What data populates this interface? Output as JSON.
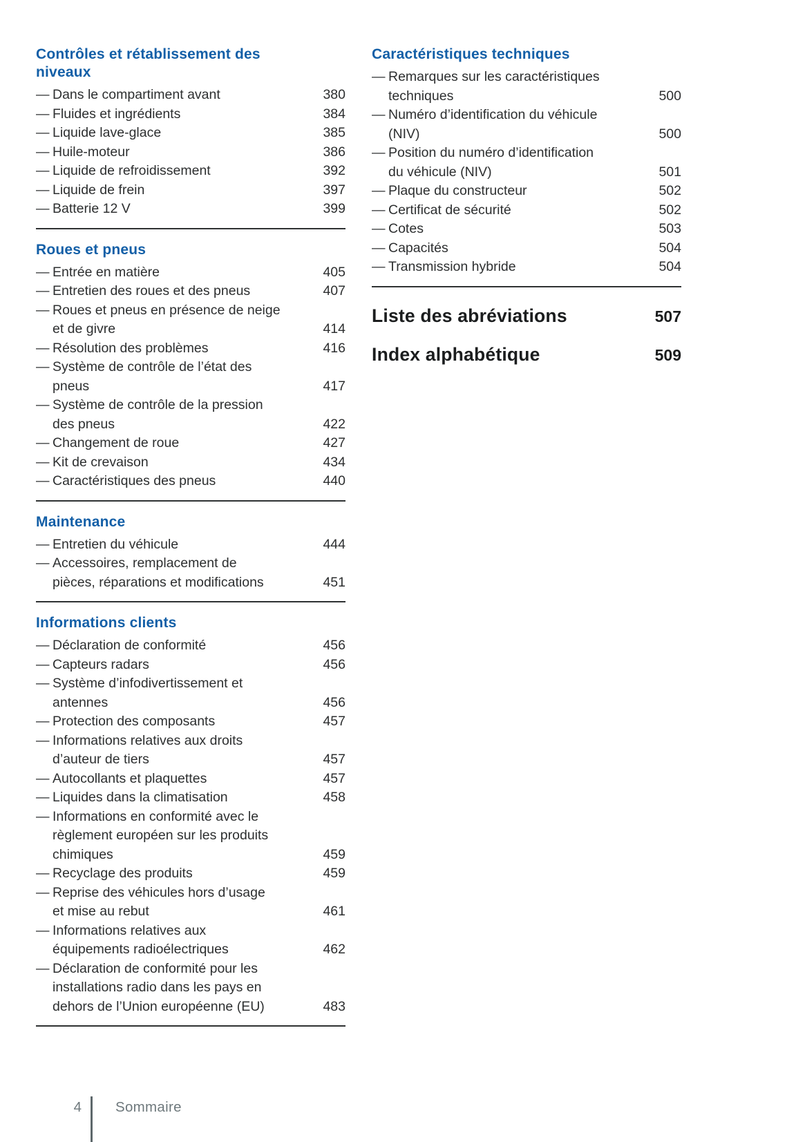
{
  "glyphs": {
    "item_dash": "—"
  },
  "colors": {
    "heading_blue": "#135fa7",
    "body_text": "#2d2f30",
    "divider": "#2e3132",
    "major_heading": "#1b1d1e",
    "footer_gray": "#6e787c"
  },
  "columns": [
    {
      "sections": [
        {
          "title": "Contrôles et rétablissement des\nniveaux",
          "items": [
            {
              "label": "Dans le compartiment avant",
              "page": "380"
            },
            {
              "label": "Fluides et ingrédients",
              "page": "384"
            },
            {
              "label": "Liquide lave-glace",
              "page": "385"
            },
            {
              "label": "Huile-moteur",
              "page": "386"
            },
            {
              "label": "Liquide de refroidissement",
              "page": "392"
            },
            {
              "label": "Liquide de frein",
              "page": "397"
            },
            {
              "label": "Batterie 12 V",
              "page": "399"
            }
          ]
        },
        {
          "title": "Roues et pneus",
          "items": [
            {
              "label": "Entrée en matière",
              "page": "405"
            },
            {
              "label": "Entretien des roues et des pneus",
              "page": "407"
            },
            {
              "label": "Roues et pneus en présence de neige\net de givre",
              "page": "414"
            },
            {
              "label": "Résolution des problèmes",
              "page": "416"
            },
            {
              "label": "Système de contrôle de l’état des\npneus",
              "page": "417"
            },
            {
              "label": "Système de contrôle de la pression\ndes pneus",
              "page": "422"
            },
            {
              "label": "Changement de roue",
              "page": "427"
            },
            {
              "label": "Kit de crevaison",
              "page": "434"
            },
            {
              "label": "Caractéristiques des pneus",
              "page": "440"
            }
          ]
        },
        {
          "title": "Maintenance",
          "items": [
            {
              "label": "Entretien du véhicule",
              "page": "444"
            },
            {
              "label": "Accessoires, remplacement de\npièces, réparations et modifications",
              "page": "451"
            }
          ]
        },
        {
          "title": "Informations clients",
          "items": [
            {
              "label": "Déclaration de conformité",
              "page": "456"
            },
            {
              "label": "Capteurs radars",
              "page": "456"
            },
            {
              "label": "Système d’infodivertissement et\nantennes",
              "page": "456"
            },
            {
              "label": "Protection des composants",
              "page": "457"
            },
            {
              "label": "Informations relatives aux droits\nd’auteur de tiers",
              "page": "457"
            },
            {
              "label": "Autocollants et plaquettes",
              "page": "457"
            },
            {
              "label": "Liquides dans la climatisation",
              "page": "458"
            },
            {
              "label": "Informations en conformité avec le\nrèglement européen sur les produits\nchimiques",
              "page": "459"
            },
            {
              "label": "Recyclage des produits",
              "page": "459"
            },
            {
              "label": "Reprise des véhicules hors d’usage\net mise au rebut",
              "page": "461"
            },
            {
              "label": "Informations relatives aux\néquipements radioélectriques",
              "page": "462"
            },
            {
              "label": "Déclaration de conformité pour les\ninstallations radio dans les pays en\ndehors de l’Union européenne (EU)",
              "page": "483"
            }
          ]
        }
      ],
      "major_entries": []
    },
    {
      "sections": [
        {
          "title": "Caractéristiques techniques",
          "items": [
            {
              "label": "Remarques sur les caractéristiques\ntechniques",
              "page": "500"
            },
            {
              "label": "Numéro d’identification du véhicule\n(NIV)",
              "page": "500"
            },
            {
              "label": "Position du numéro d’identification\ndu véhicule (NIV)",
              "page": "501"
            },
            {
              "label": "Plaque du constructeur",
              "page": "502"
            },
            {
              "label": "Certificat de sécurité",
              "page": "502"
            },
            {
              "label": "Cotes",
              "page": "503"
            },
            {
              "label": "Capacités",
              "page": "504"
            },
            {
              "label": "Transmission hybride",
              "page": "504"
            }
          ]
        }
      ],
      "major_entries": [
        {
          "title": "Liste des abréviations",
          "page": "507"
        },
        {
          "title": "Index alphabétique",
          "page": "509"
        }
      ]
    }
  ],
  "footer": {
    "page_number": "4",
    "section_label": "Sommaire"
  }
}
